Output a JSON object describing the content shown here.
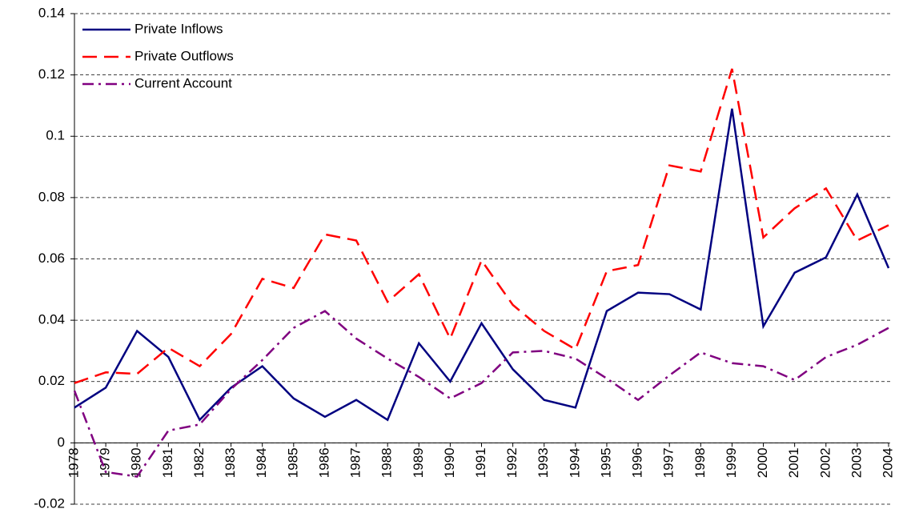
{
  "chart_data": {
    "type": "line",
    "categories": [
      "1978",
      "1979",
      "1980",
      "1981",
      "1982",
      "1983",
      "1984",
      "1985",
      "1986",
      "1987",
      "1988",
      "1989",
      "1990",
      "1991",
      "1992",
      "1993",
      "1994",
      "1995",
      "1996",
      "1997",
      "1998",
      "1999",
      "2000",
      "2001",
      "2002",
      "2003",
      "2004"
    ],
    "series": [
      {
        "name": "Private Inflows",
        "color": "#000080",
        "dash": "solid",
        "values": [
          0.0115,
          0.018,
          0.0365,
          0.028,
          0.0075,
          0.018,
          0.025,
          0.0145,
          0.0085,
          0.014,
          0.0075,
          0.0325,
          0.02,
          0.039,
          0.024,
          0.014,
          0.0115,
          0.043,
          0.049,
          0.0485,
          0.0435,
          0.109,
          0.038,
          0.0555,
          0.0605,
          0.081,
          0.057
        ]
      },
      {
        "name": "Private Outflows",
        "color": "#ff0000",
        "dash": "dashed",
        "values": [
          0.0195,
          0.023,
          0.0225,
          0.031,
          0.025,
          0.0355,
          0.0535,
          0.0505,
          0.068,
          0.066,
          0.046,
          0.055,
          0.034,
          0.0595,
          0.045,
          0.0365,
          0.0305,
          0.056,
          0.058,
          0.0905,
          0.0885,
          0.122,
          0.067,
          0.0765,
          0.083,
          0.066,
          0.071
        ]
      },
      {
        "name": "Current Account",
        "color": "#800080",
        "dash": "dashdot",
        "values": [
          0.017,
          -0.0095,
          -0.011,
          0.004,
          0.006,
          0.0175,
          0.027,
          0.0375,
          0.043,
          0.034,
          0.0275,
          0.0215,
          0.0145,
          0.0195,
          0.0295,
          0.03,
          0.0275,
          0.021,
          0.014,
          0.022,
          0.0295,
          0.026,
          0.025,
          0.0205,
          0.028,
          0.032,
          0.0375
        ]
      }
    ],
    "ylim": [
      -0.02,
      0.14
    ],
    "yticks": [
      -0.02,
      0,
      0.02,
      0.04,
      0.06,
      0.08,
      0.1,
      0.12,
      0.14
    ],
    "grid": true,
    "legend": "top-left"
  }
}
